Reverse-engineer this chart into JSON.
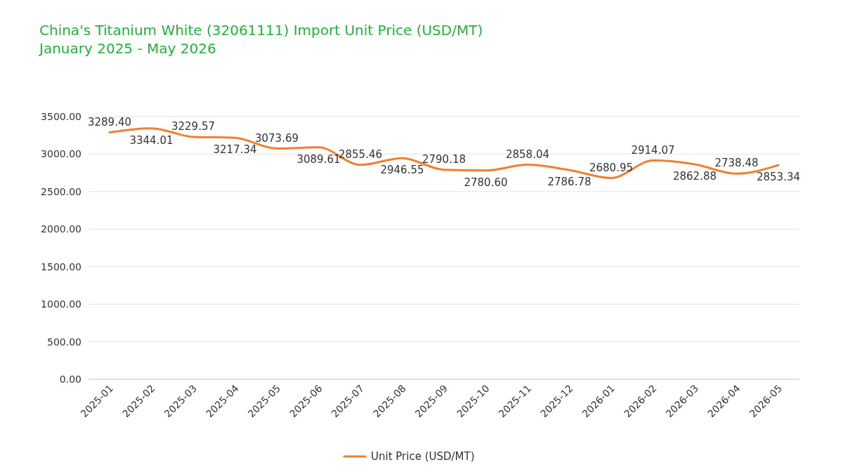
{
  "chart_data": {
    "type": "line",
    "title": "China's Titanium White (32061111) Import Unit Price (USD/MT)",
    "subtitle": "January 2025 - May 2026",
    "categories": [
      "2025-01",
      "2025-02",
      "2025-03",
      "2025-04",
      "2025-05",
      "2025-06",
      "2025-07",
      "2025-08",
      "2025-09",
      "2025-10",
      "2025-11",
      "2025-12",
      "2026-01",
      "2026-02",
      "2026-03",
      "2026-04",
      "2026-05"
    ],
    "series": [
      {
        "name": "Unit Price (USD/MT)",
        "color": "#f07f2f",
        "values": [
          3289.4,
          3344.01,
          3229.57,
          3217.34,
          3073.69,
          3089.61,
          2855.46,
          2946.55,
          2790.18,
          2780.6,
          2858.04,
          2786.78,
          2680.95,
          2914.07,
          2862.88,
          2738.48,
          2853.34
        ],
        "value_labels": [
          "3289.40",
          "3344.01",
          "3229.57",
          "3217.34",
          "3073.69",
          "3089.61",
          "2855.46",
          "2946.55",
          "2790.18",
          "2780.60",
          "2858.04",
          "2786.78",
          "2680.95",
          "2914.07",
          "2862.88",
          "2738.48",
          "2853.34"
        ]
      }
    ],
    "ylim": [
      0,
      3500
    ],
    "yticks": [
      {
        "value": 0,
        "label": "0.00"
      },
      {
        "value": 500,
        "label": "500.00"
      },
      {
        "value": 1000,
        "label": "1000.00"
      },
      {
        "value": 1500,
        "label": "1500.00"
      },
      {
        "value": 2000,
        "label": "2000.00"
      },
      {
        "value": 2500,
        "label": "2500.00"
      },
      {
        "value": 3000,
        "label": "3000.00"
      },
      {
        "value": 3500,
        "label": "3500.00"
      }
    ],
    "grid": "y",
    "legend": "bottom"
  }
}
